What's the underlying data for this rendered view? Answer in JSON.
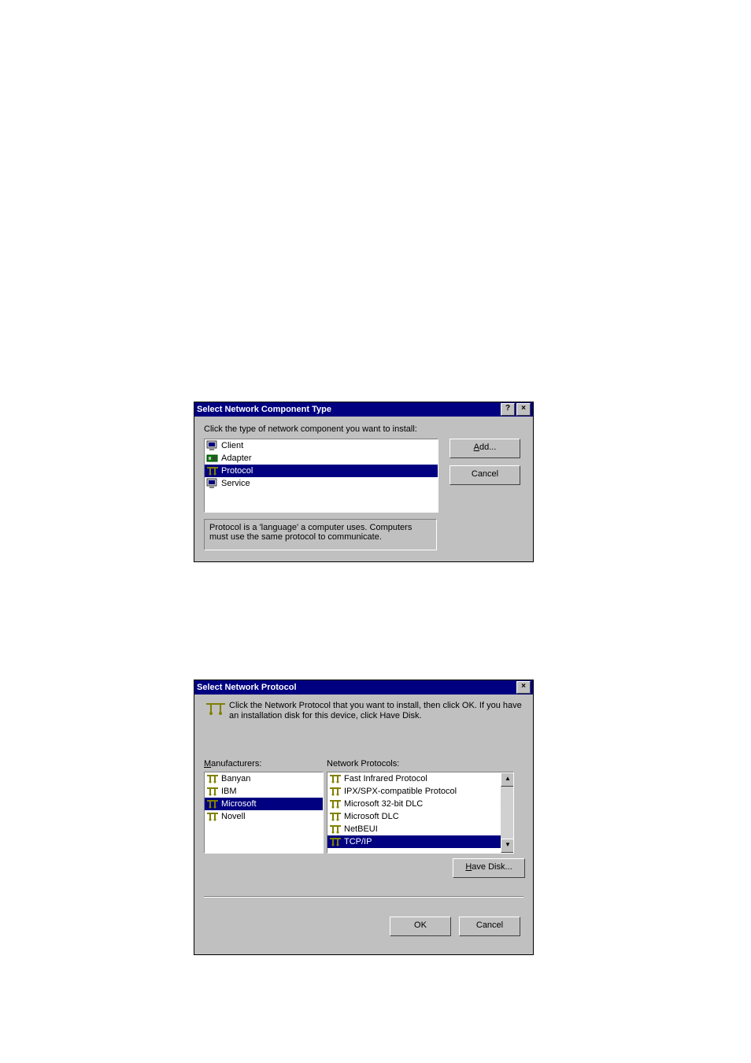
{
  "colors": {
    "dialog_bg": "#c0c0c0",
    "titlebar_bg": "#000080",
    "titlebar_fg": "#ffffff",
    "selection_bg": "#000080",
    "selection_fg": "#ffffff",
    "white": "#ffffff",
    "text": "#000000"
  },
  "dialog1": {
    "title": "Select Network Component Type",
    "instruction": "Click the type of network component you want to install:",
    "items": [
      {
        "label": "Client",
        "icon": "monitor-icon",
        "selected": false
      },
      {
        "label": "Adapter",
        "icon": "card-icon",
        "selected": false
      },
      {
        "label": "Protocol",
        "icon": "protocol-icon",
        "selected": true
      },
      {
        "label": "Service",
        "icon": "monitor-icon",
        "selected": false
      }
    ],
    "description": "Protocol is a 'language' a computer uses. Computers must use the same protocol to communicate.",
    "buttons": {
      "add": "Add...",
      "cancel": "Cancel"
    },
    "titlebar_buttons": {
      "help": "?",
      "close": "×"
    }
  },
  "dialog2": {
    "title": "Select Network Protocol",
    "instruction": "Click the Network Protocol that you want to install, then click OK. If you have an installation disk for this device, click Have Disk.",
    "labels": {
      "manufacturers": "Manufacturers:",
      "protocols": "Network Protocols:"
    },
    "manufacturers": [
      {
        "label": "Banyan",
        "selected": false
      },
      {
        "label": "IBM",
        "selected": false
      },
      {
        "label": "Microsoft",
        "selected": true
      },
      {
        "label": "Novell",
        "selected": false
      }
    ],
    "protocols": [
      {
        "label": "Fast Infrared Protocol",
        "selected": false
      },
      {
        "label": "IPX/SPX-compatible Protocol",
        "selected": false
      },
      {
        "label": "Microsoft 32-bit DLC",
        "selected": false
      },
      {
        "label": "Microsoft DLC",
        "selected": false
      },
      {
        "label": "NetBEUI",
        "selected": false
      },
      {
        "label": "TCP/IP",
        "selected": true
      }
    ],
    "buttons": {
      "have_disk": "Have Disk...",
      "ok": "OK",
      "cancel": "Cancel"
    },
    "titlebar_buttons": {
      "close": "×"
    }
  }
}
